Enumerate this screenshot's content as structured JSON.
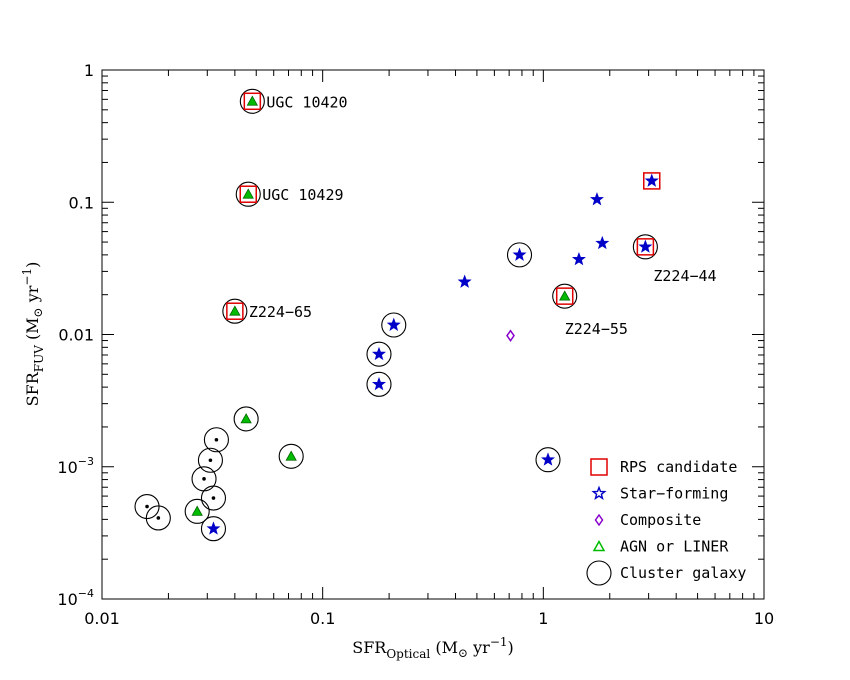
{
  "chart_data": {
    "type": "scatter",
    "xscale": "log",
    "yscale": "log",
    "xlim": [
      0.01,
      10
    ],
    "ylim": [
      0.0001,
      1
    ],
    "xlabel": "SFR_Optical (M_sun yr^-1)",
    "ylabel": "SFR_FUV (M_sun yr^-1)",
    "x_ticks": [
      {
        "v": 0.01,
        "label": "0.01"
      },
      {
        "v": 0.1,
        "label": "0.1"
      },
      {
        "v": 1,
        "label": "1"
      },
      {
        "v": 10,
        "label": "10"
      }
    ],
    "y_ticks": [
      {
        "v": 0.0001,
        "base": "10",
        "exp": "−4"
      },
      {
        "v": 0.001,
        "base": "10",
        "exp": "−3"
      },
      {
        "v": 0.01,
        "label": "0.01"
      },
      {
        "v": 0.1,
        "label": "0.1"
      },
      {
        "v": 1,
        "label": "1"
      }
    ],
    "axis_text": {
      "x_main": "SFR",
      "x_sub": "Optical",
      "x_units_open": " (M",
      "x_units_close": " yr",
      "x_exp": "−1",
      "y_main": "SFR",
      "y_sub": "FUV",
      "y_units_open": " (M",
      "y_units_close": " yr",
      "y_exp": "−1",
      "sun": "⊙",
      "paren": ")"
    },
    "points": [
      {
        "x": 0.048,
        "y": 0.58,
        "type": "agn",
        "rps": true,
        "cluster": true
      },
      {
        "x": 0.046,
        "y": 0.115,
        "type": "agn",
        "rps": true,
        "cluster": true
      },
      {
        "x": 0.04,
        "y": 0.015,
        "type": "agn",
        "rps": true,
        "cluster": true
      },
      {
        "x": 1.25,
        "y": 0.0195,
        "type": "agn",
        "rps": true,
        "cluster": true
      },
      {
        "x": 2.9,
        "y": 0.046,
        "type": "sf",
        "rps": true,
        "cluster": true
      },
      {
        "x": 3.1,
        "y": 0.145,
        "type": "sf",
        "rps": true,
        "cluster": false
      },
      {
        "x": 1.75,
        "y": 0.105,
        "type": "sf",
        "rps": false,
        "cluster": false
      },
      {
        "x": 1.85,
        "y": 0.049,
        "type": "sf",
        "rps": false,
        "cluster": false
      },
      {
        "x": 1.45,
        "y": 0.037,
        "type": "sf",
        "rps": false,
        "cluster": false
      },
      {
        "x": 0.44,
        "y": 0.025,
        "type": "sf",
        "rps": false,
        "cluster": false
      },
      {
        "x": 0.78,
        "y": 0.04,
        "type": "sf",
        "rps": false,
        "cluster": true
      },
      {
        "x": 0.21,
        "y": 0.0118,
        "type": "sf",
        "rps": false,
        "cluster": true
      },
      {
        "x": 0.18,
        "y": 0.0071,
        "type": "sf",
        "rps": false,
        "cluster": true
      },
      {
        "x": 0.18,
        "y": 0.0042,
        "type": "sf",
        "rps": false,
        "cluster": true
      },
      {
        "x": 1.05,
        "y": 0.00113,
        "type": "sf",
        "rps": false,
        "cluster": true
      },
      {
        "x": 0.032,
        "y": 0.00034,
        "type": "sf",
        "rps": false,
        "cluster": true
      },
      {
        "x": 0.71,
        "y": 0.0098,
        "type": "comp",
        "rps": false,
        "cluster": false
      },
      {
        "x": 0.045,
        "y": 0.0023,
        "type": "agn",
        "rps": false,
        "cluster": true
      },
      {
        "x": 0.072,
        "y": 0.0012,
        "type": "agn",
        "rps": false,
        "cluster": true
      },
      {
        "x": 0.027,
        "y": 0.00046,
        "type": "agn",
        "rps": false,
        "cluster": true
      },
      {
        "x": 0.033,
        "y": 0.0016,
        "type": "none",
        "rps": false,
        "cluster": true
      },
      {
        "x": 0.031,
        "y": 0.00112,
        "type": "none",
        "rps": false,
        "cluster": true
      },
      {
        "x": 0.029,
        "y": 0.00081,
        "type": "none",
        "rps": false,
        "cluster": true
      },
      {
        "x": 0.032,
        "y": 0.00058,
        "type": "none",
        "rps": false,
        "cluster": true
      },
      {
        "x": 0.016,
        "y": 0.0005,
        "type": "none",
        "rps": false,
        "cluster": true
      },
      {
        "x": 0.018,
        "y": 0.00041,
        "type": "none",
        "rps": false,
        "cluster": true
      }
    ],
    "annotations": [
      {
        "text": "UGC 10420",
        "x": 0.048,
        "y": 0.58
      },
      {
        "text": "UGC 10429",
        "x": 0.046,
        "y": 0.115
      },
      {
        "text": "Z224−65",
        "x": 0.04,
        "y": 0.015
      },
      {
        "text": "Z224−55",
        "x": 1.25,
        "y": 0.0195
      },
      {
        "text": "Z224−44",
        "x": 2.9,
        "y": 0.046
      }
    ],
    "legend": {
      "position": "bottom-right",
      "items": [
        {
          "label": "RPS candidate",
          "marker": "rps"
        },
        {
          "label": "Star−forming",
          "marker": "sf"
        },
        {
          "label": "Composite",
          "marker": "comp"
        },
        {
          "label": "AGN or LINER",
          "marker": "agn"
        },
        {
          "label": "Cluster galaxy",
          "marker": "cluster"
        }
      ]
    },
    "colors": {
      "rps": "#e00000",
      "sf": "#0000c8",
      "comp": "#8800cc",
      "agn": "#00bb00",
      "cluster": "#000000"
    }
  }
}
